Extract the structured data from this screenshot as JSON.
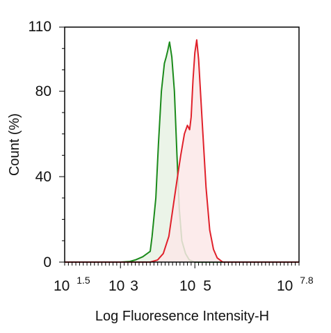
{
  "chart_data": {
    "type": "area",
    "xlabel": "Log Fluoresence Intensity-H",
    "ylabel": "Count  (%)",
    "x_scale": "log10",
    "xlim_log10": [
      1.5,
      7.8
    ],
    "ylim": [
      0,
      110
    ],
    "grid": false,
    "legend": "none",
    "x_tick_labels": [
      {
        "base": "10",
        "exp": "1.5",
        "log10": 1.5
      },
      {
        "base": "10",
        "exp": "3",
        "log10": 3
      },
      {
        "base": "10",
        "exp": "5",
        "log10": 5
      },
      {
        "base": "10",
        "exp": "7.8",
        "log10": 7.8
      }
    ],
    "y_ticks": [
      0,
      40,
      80,
      110
    ],
    "series": [
      {
        "stroke": "#1a8a1a",
        "fill": "#e8f2e4",
        "x_log10": [
          1.5,
          3.0,
          3.25,
          3.4,
          3.6,
          3.8,
          3.85,
          3.95,
          4.02,
          4.1,
          4.18,
          4.23,
          4.27,
          4.32,
          4.38,
          4.45,
          4.52,
          4.58,
          4.65,
          4.75,
          4.85,
          5.0,
          7.8
        ],
        "values": [
          0,
          0,
          0.3,
          1,
          2.5,
          5,
          12,
          30,
          55,
          80,
          93,
          96,
          99,
          103,
          96,
          80,
          50,
          25,
          10,
          4,
          1,
          0,
          0
        ]
      },
      {
        "stroke": "#e0202a",
        "fill": "#fce8e8",
        "x_log10": [
          1.5,
          3.8,
          4.0,
          4.15,
          4.3,
          4.45,
          4.55,
          4.62,
          4.72,
          4.8,
          4.86,
          4.9,
          4.95,
          5.0,
          5.05,
          5.1,
          5.2,
          5.3,
          5.4,
          5.5,
          5.6,
          5.75,
          7.8
        ],
        "values": [
          0,
          0,
          1,
          4,
          12,
          30,
          42,
          50,
          60,
          64,
          62,
          68,
          85,
          98,
          104,
          95,
          65,
          35,
          15,
          6,
          2,
          0,
          0
        ]
      }
    ]
  }
}
